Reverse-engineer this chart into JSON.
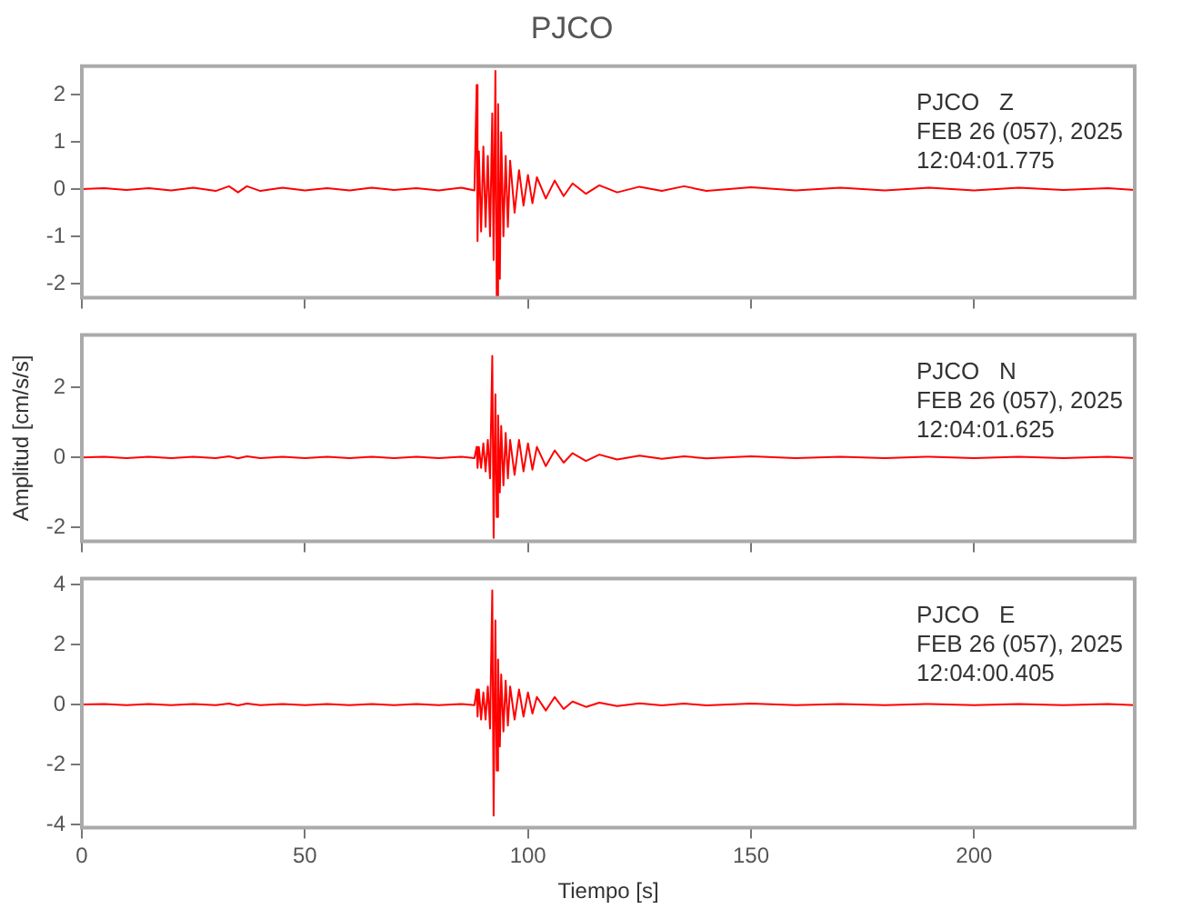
{
  "chart_data": [
    {
      "type": "line",
      "title": "PJCO",
      "x": [
        0,
        5,
        10,
        15,
        20,
        25,
        30,
        33,
        35,
        37,
        40,
        45,
        50,
        55,
        60,
        65,
        70,
        75,
        80,
        85,
        88,
        88.5,
        88.7,
        89,
        89.5,
        90,
        90.5,
        91,
        91.5,
        92,
        92.3,
        92.7,
        93,
        93.3,
        93.7,
        94,
        94.5,
        95,
        95.5,
        96,
        97,
        98,
        99,
        100,
        101,
        102,
        104,
        106,
        108,
        110,
        113,
        116,
        120,
        125,
        130,
        135,
        140,
        150,
        160,
        170,
        180,
        190,
        200,
        210,
        220,
        230,
        236
      ],
      "series": [
        {
          "color": "#ff0000",
          "values": [
            0,
            0.02,
            -0.02,
            0.02,
            -0.03,
            0.03,
            -0.04,
            0.06,
            -0.07,
            0.06,
            -0.04,
            0.03,
            -0.03,
            0.02,
            -0.03,
            0.03,
            -0.02,
            0.02,
            -0.03,
            0.03,
            -0.03,
            2.2,
            -1.1,
            0.8,
            -0.9,
            0.9,
            -0.8,
            0.7,
            -1.0,
            1.6,
            -1.5,
            2.5,
            -2.3,
            1.8,
            -1.9,
            1.2,
            -1.0,
            0.7,
            -0.8,
            0.6,
            -0.5,
            0.4,
            -0.35,
            0.3,
            -0.3,
            0.25,
            -0.2,
            0.18,
            -0.15,
            0.12,
            -0.1,
            0.08,
            -0.07,
            0.05,
            -0.04,
            0.06,
            -0.04,
            0.04,
            -0.03,
            0.03,
            -0.03,
            0.03,
            -0.03,
            0.03,
            -0.02,
            0.02,
            -0.02
          ]
        }
      ],
      "xlim": [
        0,
        236
      ],
      "xticks": [
        0,
        50,
        100,
        150,
        200
      ],
      "ylim": [
        -2.3,
        2.6
      ],
      "yticks": [
        -2,
        -1,
        0,
        1,
        2
      ],
      "tick_labels": "y",
      "marker": "none",
      "annotations": [
        "PJCO   Z",
        "FEB 26 (057), 2025",
        "12:04:01.775"
      ]
    },
    {
      "type": "line",
      "ylabel": "Amplitud [cm/s/s]",
      "x": [
        0,
        5,
        10,
        15,
        20,
        25,
        30,
        33,
        35,
        37,
        40,
        45,
        50,
        55,
        60,
        65,
        70,
        75,
        80,
        85,
        88,
        88.5,
        88.7,
        89,
        89.5,
        90,
        90.5,
        91,
        91.5,
        92,
        92.3,
        92.7,
        93,
        93.3,
        93.7,
        94,
        94.5,
        95,
        95.5,
        96,
        97,
        98,
        99,
        100,
        101,
        102,
        104,
        106,
        108,
        110,
        113,
        116,
        120,
        125,
        130,
        135,
        140,
        150,
        160,
        170,
        180,
        190,
        200,
        210,
        220,
        230,
        236
      ],
      "series": [
        {
          "color": "#ff0000",
          "values": [
            0,
            0.02,
            -0.02,
            0.02,
            -0.02,
            0.02,
            -0.02,
            0.03,
            -0.03,
            0.03,
            -0.02,
            0.02,
            -0.02,
            0.02,
            -0.02,
            0.02,
            -0.02,
            0.02,
            -0.02,
            0.02,
            -0.02,
            0.3,
            -0.3,
            0.3,
            -0.3,
            0.4,
            -0.4,
            0.5,
            -0.6,
            2.9,
            -2.3,
            1.8,
            -1.7,
            1.2,
            -1.0,
            0.9,
            -0.8,
            0.7,
            -0.6,
            0.5,
            -0.5,
            0.5,
            -0.4,
            0.4,
            -0.35,
            0.3,
            -0.25,
            0.2,
            -0.15,
            0.12,
            -0.1,
            0.08,
            -0.06,
            0.05,
            -0.04,
            0.03,
            -0.03,
            0.03,
            -0.02,
            0.02,
            -0.02,
            0.02,
            -0.02,
            0.02,
            -0.02,
            0.02,
            -0.02
          ]
        }
      ],
      "xlim": [
        0,
        236
      ],
      "xticks": [
        0,
        50,
        100,
        150,
        200
      ],
      "ylim": [
        -2.4,
        3.5
      ],
      "yticks": [
        -2,
        0,
        2
      ],
      "tick_labels": "y",
      "marker": "none",
      "annotations": [
        "PJCO   N",
        "FEB 26 (057), 2025",
        "12:04:01.625"
      ]
    },
    {
      "type": "line",
      "xlabel": "Tiempo [s]",
      "x": [
        0,
        5,
        10,
        15,
        20,
        25,
        30,
        33,
        35,
        37,
        40,
        45,
        50,
        55,
        60,
        65,
        70,
        75,
        80,
        85,
        88,
        88.5,
        88.7,
        89,
        89.5,
        90,
        90.5,
        91,
        91.5,
        92,
        92.3,
        92.7,
        93,
        93.3,
        93.7,
        94,
        94.5,
        95,
        95.5,
        96,
        97,
        98,
        99,
        100,
        101,
        102,
        104,
        106,
        108,
        110,
        113,
        116,
        120,
        125,
        130,
        135,
        140,
        150,
        160,
        170,
        180,
        190,
        200,
        210,
        220,
        230,
        236
      ],
      "series": [
        {
          "color": "#ff0000",
          "values": [
            0,
            0.02,
            -0.02,
            0.02,
            -0.02,
            0.02,
            -0.02,
            0.03,
            -0.03,
            0.03,
            -0.02,
            0.02,
            -0.02,
            0.02,
            -0.02,
            0.02,
            -0.02,
            0.02,
            -0.02,
            0.02,
            -0.02,
            0.5,
            -0.4,
            0.5,
            -0.5,
            0.4,
            -0.5,
            0.6,
            -0.8,
            3.8,
            -3.7,
            2.8,
            -2.2,
            1.5,
            -1.4,
            1.0,
            -0.9,
            0.8,
            -0.7,
            0.6,
            -0.5,
            0.5,
            -0.4,
            0.4,
            -0.3,
            0.25,
            -0.2,
            0.25,
            -0.15,
            0.1,
            -0.08,
            0.06,
            -0.05,
            0.04,
            -0.03,
            0.03,
            -0.03,
            0.03,
            -0.02,
            0.02,
            -0.02,
            0.02,
            -0.02,
            0.02,
            -0.02,
            0.02,
            -0.02
          ]
        }
      ],
      "xlim": [
        0,
        236
      ],
      "xticks": [
        0,
        50,
        100,
        150,
        200
      ],
      "ylim": [
        -4.1,
        4.2
      ],
      "yticks": [
        -4,
        -2,
        0,
        2,
        4
      ],
      "marker": "none",
      "annotations": [
        "PJCO   E",
        "FEB 26 (057), 2025",
        "12:04:00.405"
      ]
    }
  ]
}
